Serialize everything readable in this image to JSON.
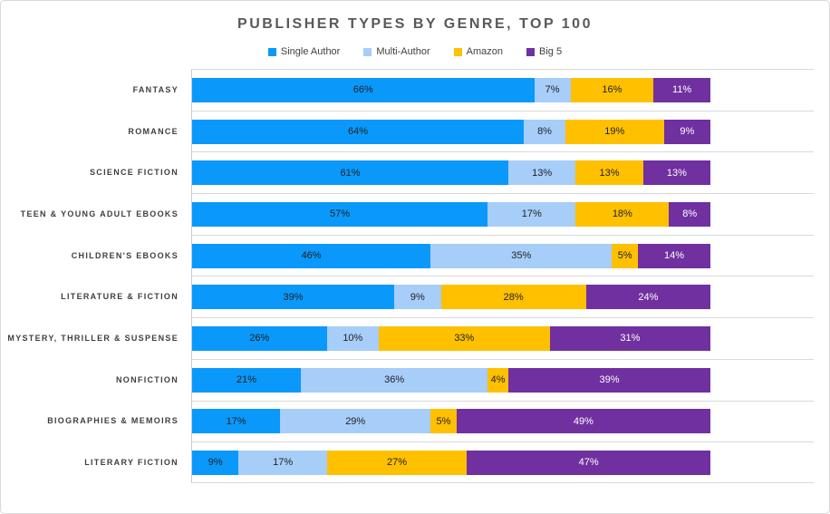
{
  "title": "PUBLISHER TYPES BY GENRE, TOP 100",
  "colors": {
    "single_author": "#0a99fa",
    "multi_author": "#a7cdf9",
    "amazon": "#ffc000",
    "big5": "#7030a0",
    "label_dark": "#1f1f1f",
    "label_light": "#ffffff",
    "gridline": "#d9d9d9",
    "title_text": "#595959",
    "category_text": "#3f3f3f"
  },
  "chart_data": {
    "type": "bar",
    "orientation": "horizontal",
    "stacked": true,
    "unit": "%",
    "title": "PUBLISHER TYPES BY GENRE, TOP 100",
    "xlim": [
      0,
      120
    ],
    "grid": "row-separators",
    "legend_position": "top-center",
    "categories": [
      "FANTASY",
      "ROMANCE",
      "SCIENCE FICTION",
      "TEEN & YOUNG ADULT EBOOKS",
      "CHILDREN'S EBOOKS",
      "LITERATURE & FICTION",
      "MYSTERY, THRILLER & SUSPENSE",
      "NONFICTION",
      "BIOGRAPHIES & MEMOIRS",
      "LITERARY FICTION"
    ],
    "series": [
      {
        "name": "Single Author",
        "color": "#0a99fa",
        "label_color": "#1f1f1f",
        "values": [
          66,
          64,
          61,
          57,
          46,
          39,
          26,
          21,
          17,
          9
        ]
      },
      {
        "name": "Multi-Author",
        "color": "#a7cdf9",
        "label_color": "#1f1f1f",
        "values": [
          7,
          8,
          13,
          17,
          35,
          9,
          10,
          36,
          29,
          17
        ]
      },
      {
        "name": "Amazon",
        "color": "#ffc000",
        "label_color": "#1f1f1f",
        "values": [
          16,
          19,
          13,
          18,
          5,
          28,
          33,
          4,
          5,
          27
        ]
      },
      {
        "name": "Big 5",
        "color": "#7030a0",
        "label_color": "#ffffff",
        "values": [
          11,
          9,
          13,
          8,
          14,
          24,
          31,
          39,
          49,
          47
        ]
      }
    ],
    "data_label_format": "{value}%"
  }
}
